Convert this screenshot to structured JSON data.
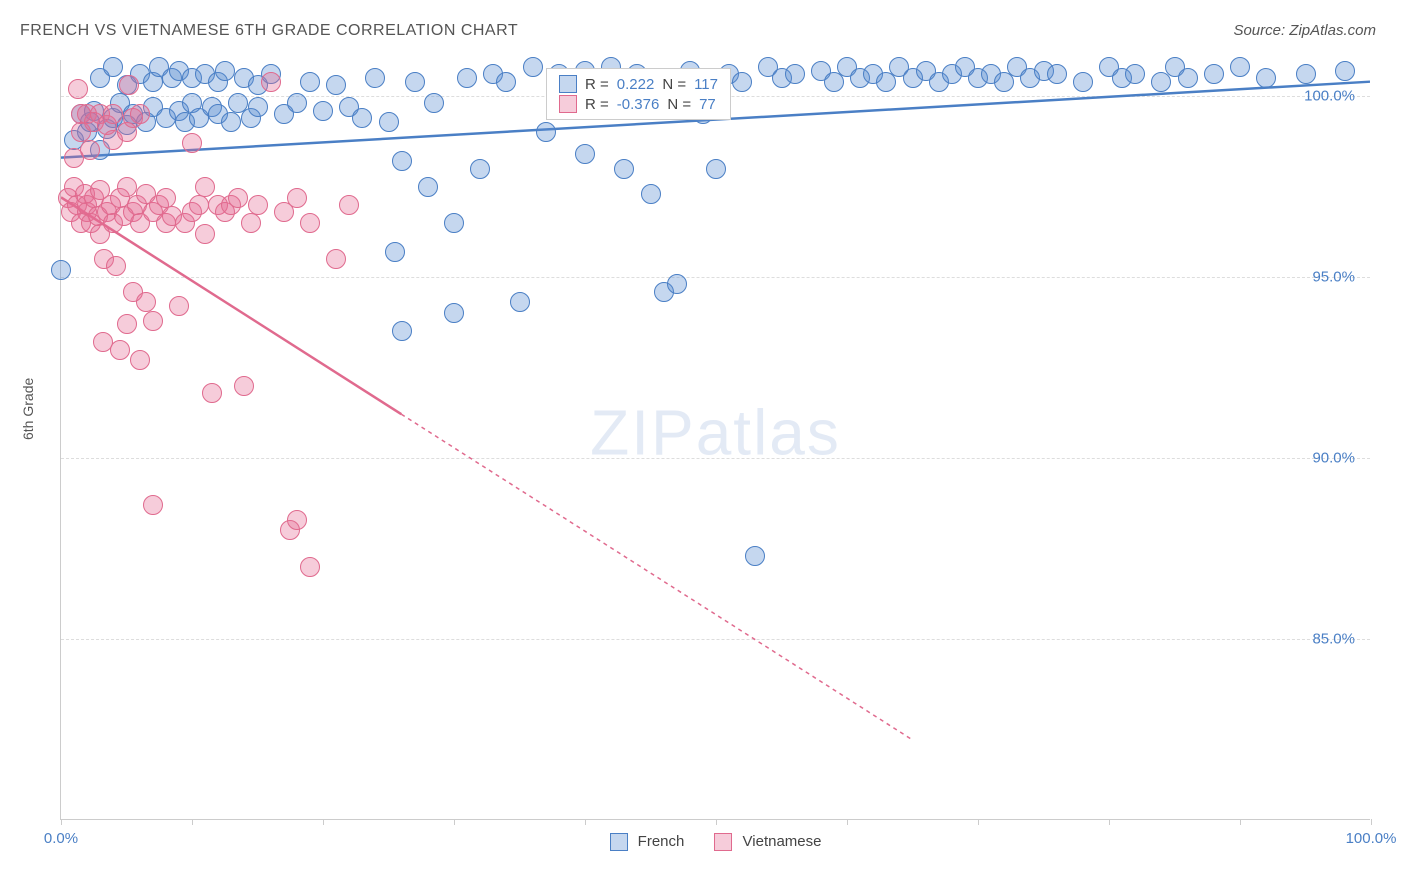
{
  "title": "FRENCH VS VIETNAMESE 6TH GRADE CORRELATION CHART",
  "source": "Source: ZipAtlas.com",
  "y_axis_label": "6th Grade",
  "watermark_a": "ZIP",
  "watermark_b": "atlas",
  "chart": {
    "type": "scatter",
    "background_color": "#ffffff",
    "grid_color": "#dddddd",
    "axis_color": "#cccccc",
    "xlim": [
      0,
      100
    ],
    "ylim": [
      80,
      101
    ],
    "x_ticks": [
      0,
      10,
      20,
      30,
      40,
      50,
      60,
      70,
      80,
      90,
      100
    ],
    "x_tick_labels": {
      "0": "0.0%",
      "100": "100.0%"
    },
    "y_ticks": [
      85,
      90,
      95,
      100
    ],
    "y_tick_labels": {
      "85": "85.0%",
      "90": "90.0%",
      "95": "95.0%",
      "100": "100.0%"
    },
    "title_fontsize": 16,
    "label_fontsize": 14,
    "tick_fontsize": 15,
    "tick_label_color": "#4a7fc5",
    "point_radius": 10,
    "point_opacity": 0.45,
    "point_stroke_width": 1.5,
    "line_thickness": 2.5
  },
  "series": {
    "french": {
      "label": "French",
      "color_fill": "rgba(90,140,210,0.35)",
      "color_stroke": "#4a7fc5",
      "r_label": "R =",
      "r_value": "0.222",
      "n_label": "N =",
      "n_value": "117",
      "trend": {
        "x1": 0,
        "y1": 98.3,
        "x2": 100,
        "y2": 100.4
      },
      "points": [
        [
          0,
          95.2
        ],
        [
          1,
          98.8
        ],
        [
          1.5,
          99.5
        ],
        [
          2,
          99
        ],
        [
          2.2,
          99.3
        ],
        [
          2.5,
          99.6
        ],
        [
          3,
          100.5
        ],
        [
          3,
          98.5
        ],
        [
          3.5,
          99.1
        ],
        [
          4,
          100.8
        ],
        [
          4,
          99.4
        ],
        [
          4.5,
          99.8
        ],
        [
          5,
          99.2
        ],
        [
          5,
          100.3
        ],
        [
          5.5,
          99.5
        ],
        [
          6,
          100.6
        ],
        [
          6.5,
          99.3
        ],
        [
          7,
          100.4
        ],
        [
          7,
          99.7
        ],
        [
          7.5,
          100.8
        ],
        [
          8,
          99.4
        ],
        [
          8.5,
          100.5
        ],
        [
          9,
          99.6
        ],
        [
          9,
          100.7
        ],
        [
          9.5,
          99.3
        ],
        [
          10,
          100.5
        ],
        [
          10,
          99.8
        ],
        [
          10.5,
          99.4
        ],
        [
          11,
          100.6
        ],
        [
          11.5,
          99.7
        ],
        [
          12,
          100.4
        ],
        [
          12,
          99.5
        ],
        [
          12.5,
          100.7
        ],
        [
          13,
          99.3
        ],
        [
          13.5,
          99.8
        ],
        [
          14,
          100.5
        ],
        [
          14.5,
          99.4
        ],
        [
          15,
          100.3
        ],
        [
          15,
          99.7
        ],
        [
          16,
          100.6
        ],
        [
          17,
          99.5
        ],
        [
          18,
          99.8
        ],
        [
          19,
          100.4
        ],
        [
          20,
          99.6
        ],
        [
          21,
          100.3
        ],
        [
          22,
          99.7
        ],
        [
          23,
          99.4
        ],
        [
          24,
          100.5
        ],
        [
          25,
          99.3
        ],
        [
          25.5,
          95.7
        ],
        [
          26,
          93.5
        ],
        [
          26,
          98.2
        ],
        [
          27,
          100.4
        ],
        [
          28,
          97.5
        ],
        [
          28.5,
          99.8
        ],
        [
          30,
          94
        ],
        [
          30,
          96.5
        ],
        [
          31,
          100.5
        ],
        [
          32,
          98
        ],
        [
          33,
          100.6
        ],
        [
          34,
          100.4
        ],
        [
          35,
          94.3
        ],
        [
          36,
          100.8
        ],
        [
          37,
          99
        ],
        [
          38,
          100.6
        ],
        [
          38.5,
          100.5
        ],
        [
          39,
          100.4
        ],
        [
          40,
          100.7
        ],
        [
          40,
          98.4
        ],
        [
          41,
          100.5
        ],
        [
          42,
          100.8
        ],
        [
          43,
          98
        ],
        [
          44,
          100.6
        ],
        [
          45,
          97.3
        ],
        [
          46,
          100.5
        ],
        [
          46,
          94.6
        ],
        [
          47,
          94.8
        ],
        [
          48,
          100.7
        ],
        [
          49,
          99.5
        ],
        [
          50,
          98
        ],
        [
          51,
          100.6
        ],
        [
          52,
          100.4
        ],
        [
          53,
          87.3
        ],
        [
          54,
          100.8
        ],
        [
          55,
          100.5
        ],
        [
          56,
          100.6
        ],
        [
          58,
          100.7
        ],
        [
          59,
          100.4
        ],
        [
          60,
          100.8
        ],
        [
          61,
          100.5
        ],
        [
          62,
          100.6
        ],
        [
          63,
          100.4
        ],
        [
          64,
          100.8
        ],
        [
          65,
          100.5
        ],
        [
          66,
          100.7
        ],
        [
          67,
          100.4
        ],
        [
          68,
          100.6
        ],
        [
          69,
          100.8
        ],
        [
          70,
          100.5
        ],
        [
          71,
          100.6
        ],
        [
          72,
          100.4
        ],
        [
          73,
          100.8
        ],
        [
          74,
          100.5
        ],
        [
          75,
          100.7
        ],
        [
          76,
          100.6
        ],
        [
          78,
          100.4
        ],
        [
          80,
          100.8
        ],
        [
          81,
          100.5
        ],
        [
          82,
          100.6
        ],
        [
          84,
          100.4
        ],
        [
          85,
          100.8
        ],
        [
          86,
          100.5
        ],
        [
          88,
          100.6
        ],
        [
          90,
          100.8
        ],
        [
          92,
          100.5
        ],
        [
          95,
          100.6
        ],
        [
          98,
          100.7
        ]
      ]
    },
    "vietnamese": {
      "label": "Vietnamese",
      "color_fill": "rgba(230,110,150,0.35)",
      "color_stroke": "#e06a8e",
      "r_label": "R =",
      "r_value": "-0.376",
      "n_label": "N =",
      "n_value": "77",
      "trend": {
        "x1": 0,
        "y1": 97.2,
        "x2": 26,
        "y2": 91.2,
        "x3": 65,
        "y3": 82.2
      },
      "points": [
        [
          0.5,
          97.2
        ],
        [
          0.8,
          96.8
        ],
        [
          1,
          97.5
        ],
        [
          1,
          98.3
        ],
        [
          1.2,
          97
        ],
        [
          1.3,
          100.2
        ],
        [
          1.5,
          99.5
        ],
        [
          1.5,
          99
        ],
        [
          1.5,
          96.5
        ],
        [
          1.8,
          97.3
        ],
        [
          2,
          96.8
        ],
        [
          2,
          97
        ],
        [
          2,
          99.5
        ],
        [
          2.2,
          98.5
        ],
        [
          2.3,
          96.5
        ],
        [
          2.5,
          97.2
        ],
        [
          2.5,
          99.3
        ],
        [
          2.8,
          96.7
        ],
        [
          3,
          97.4
        ],
        [
          3,
          99.5
        ],
        [
          3,
          96.2
        ],
        [
          3.2,
          93.2
        ],
        [
          3.3,
          95.5
        ],
        [
          3.5,
          96.8
        ],
        [
          3.5,
          99.2
        ],
        [
          3.8,
          97
        ],
        [
          4,
          96.5
        ],
        [
          4,
          98.8
        ],
        [
          4,
          99.5
        ],
        [
          4.2,
          95.3
        ],
        [
          4.5,
          97.2
        ],
        [
          4.5,
          93
        ],
        [
          4.8,
          96.7
        ],
        [
          5,
          97.5
        ],
        [
          5,
          93.7
        ],
        [
          5,
          99
        ],
        [
          5.2,
          100.3
        ],
        [
          5.5,
          99.4
        ],
        [
          5.5,
          96.8
        ],
        [
          5.5,
          94.6
        ],
        [
          5.8,
          97
        ],
        [
          6,
          96.5
        ],
        [
          6,
          99.5
        ],
        [
          6,
          92.7
        ],
        [
          6.5,
          97.3
        ],
        [
          6.5,
          94.3
        ],
        [
          7,
          96.8
        ],
        [
          7,
          93.8
        ],
        [
          7,
          88.7
        ],
        [
          7.5,
          97
        ],
        [
          8,
          96.5
        ],
        [
          8,
          97.2
        ],
        [
          8.5,
          96.7
        ],
        [
          9,
          94.2
        ],
        [
          9.5,
          96.5
        ],
        [
          10,
          96.8
        ],
        [
          10,
          98.7
        ],
        [
          10.5,
          97
        ],
        [
          11,
          97.5
        ],
        [
          11,
          96.2
        ],
        [
          11.5,
          91.8
        ],
        [
          12,
          97
        ],
        [
          12.5,
          96.8
        ],
        [
          13,
          97
        ],
        [
          13.5,
          97.2
        ],
        [
          14,
          92
        ],
        [
          14.5,
          96.5
        ],
        [
          15,
          97
        ],
        [
          16,
          100.4
        ],
        [
          17,
          96.8
        ],
        [
          17.5,
          88
        ],
        [
          18,
          97.2
        ],
        [
          18,
          88.3
        ],
        [
          19,
          96.5
        ],
        [
          19,
          87
        ],
        [
          21,
          95.5
        ],
        [
          22,
          97
        ]
      ]
    }
  },
  "bottom_legend": [
    {
      "label": "French",
      "fill": "rgba(90,140,210,0.35)",
      "stroke": "#4a7fc5"
    },
    {
      "label": "Vietnamese",
      "fill": "rgba(230,110,150,0.35)",
      "stroke": "#e06a8e"
    }
  ]
}
